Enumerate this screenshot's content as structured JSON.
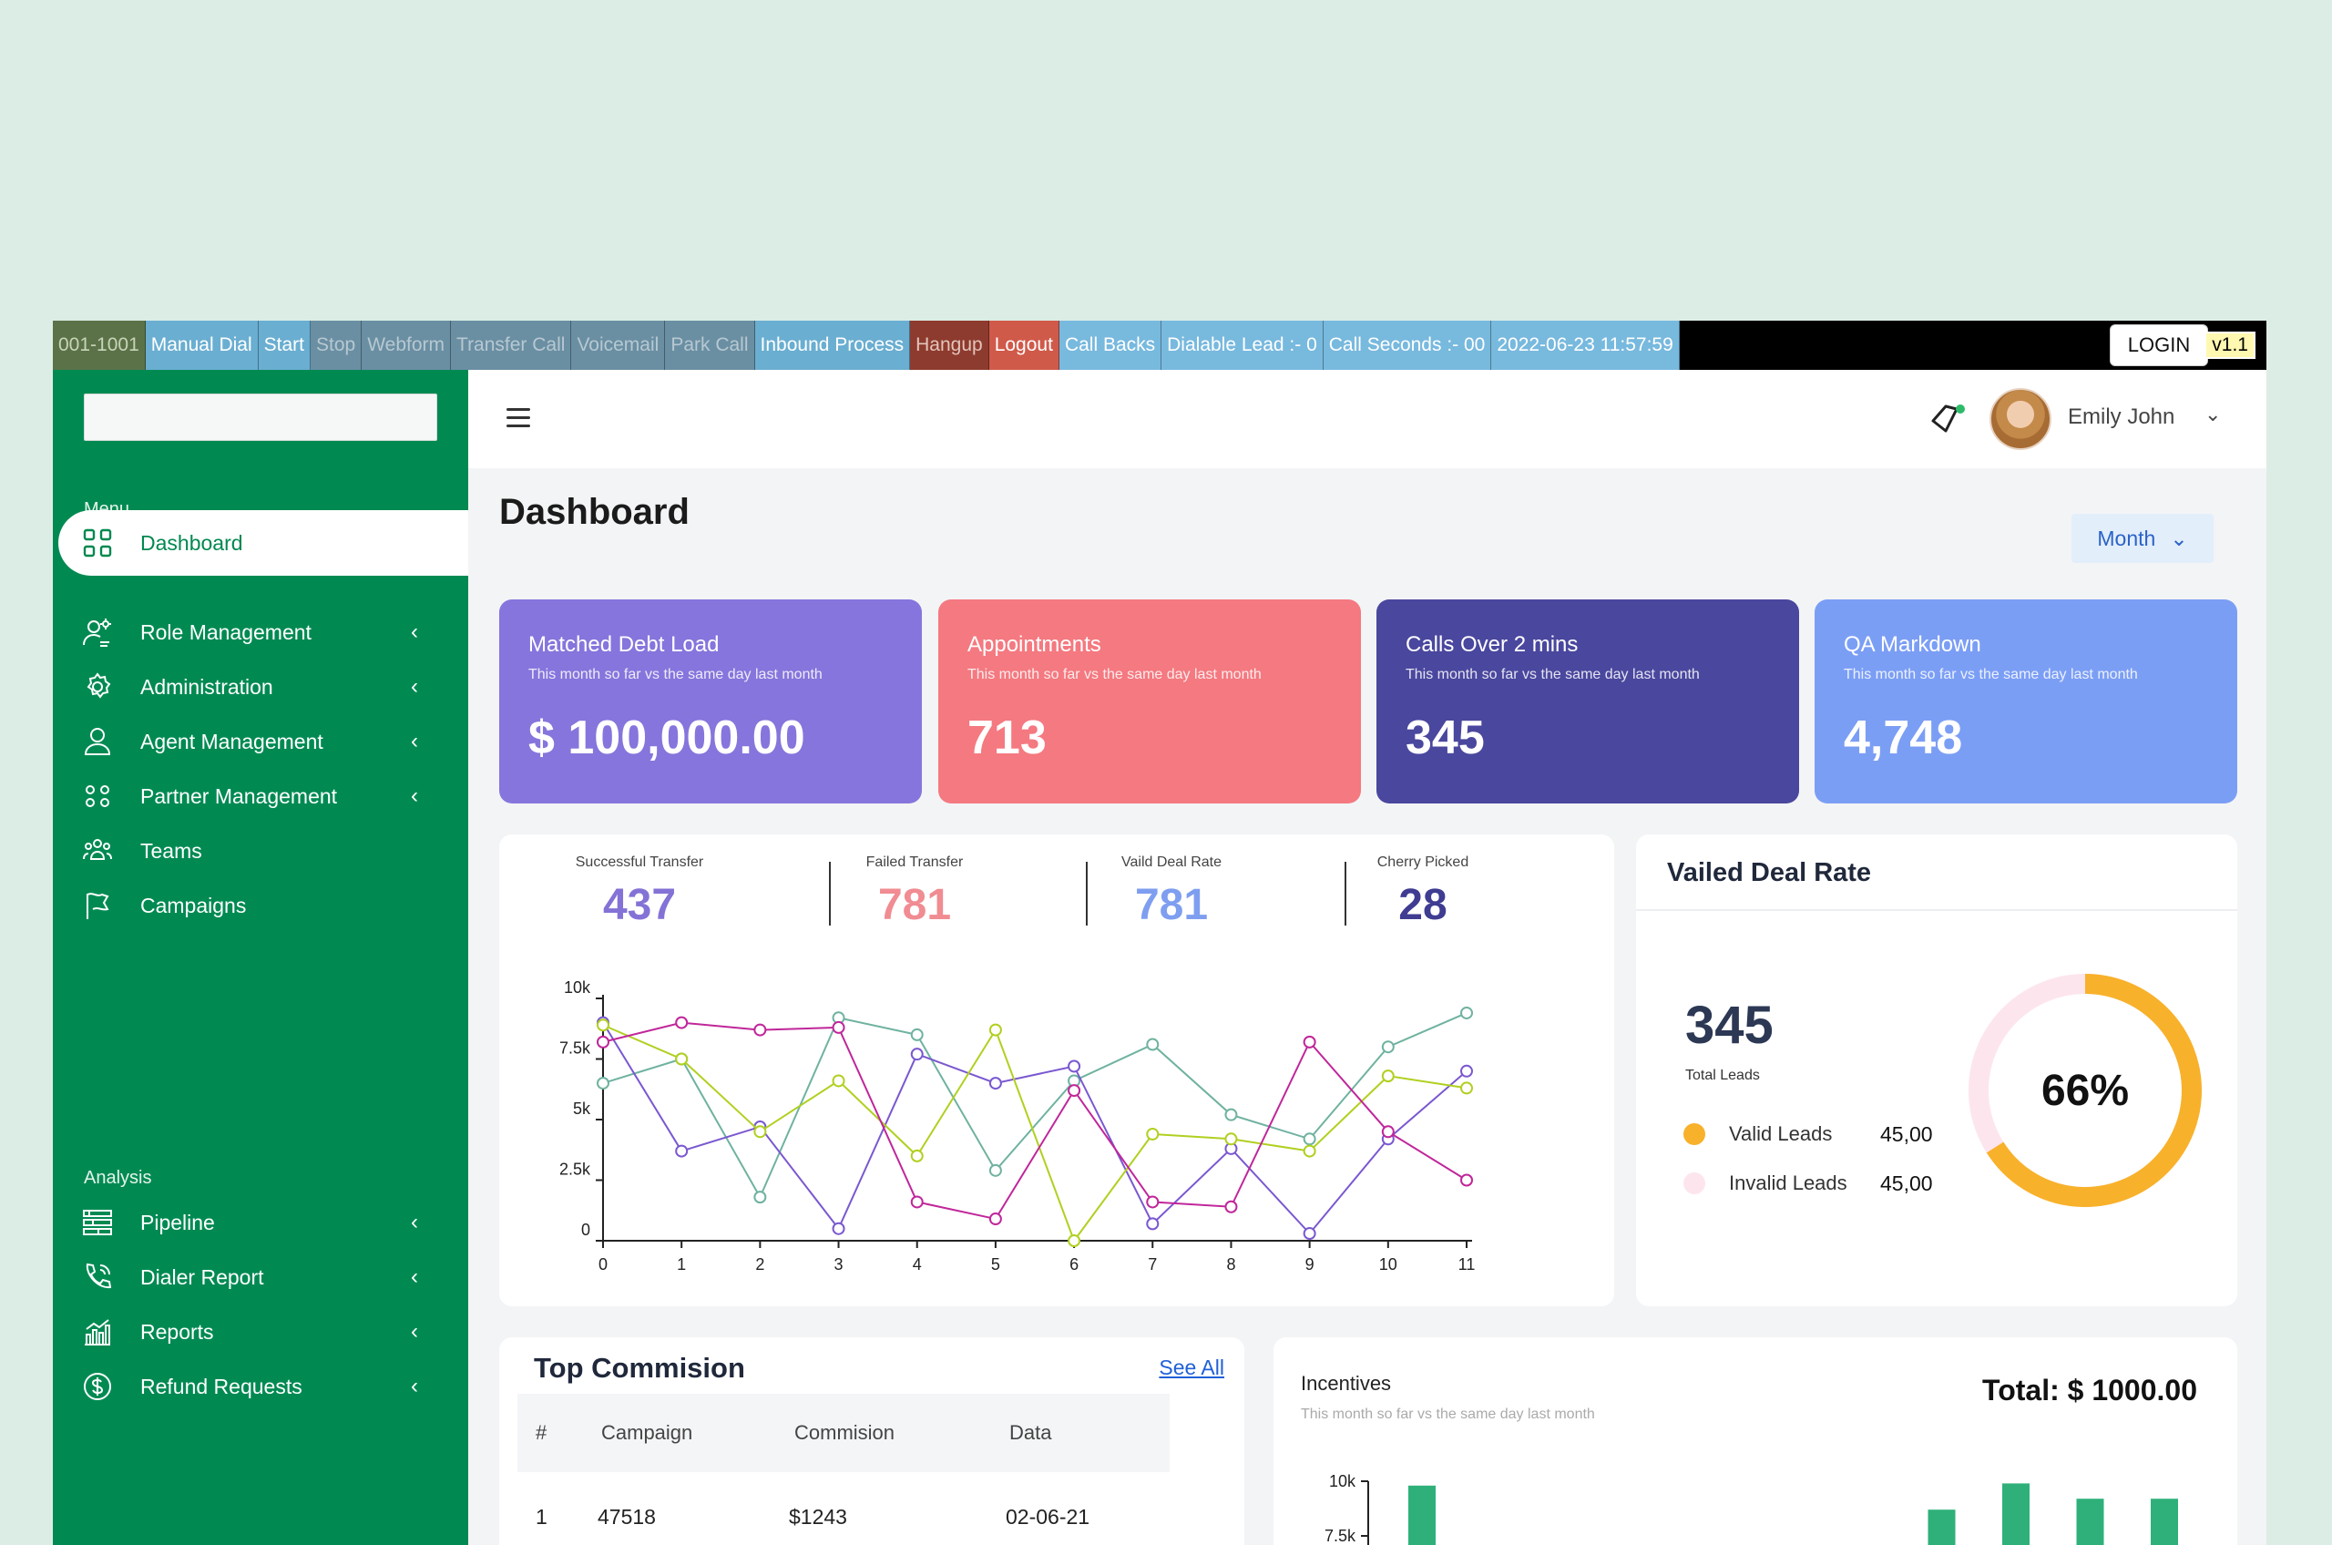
{
  "toolbar": {
    "ext": "001-1001",
    "manual_dial": "Manual Dial",
    "start": "Start",
    "stop": "Stop",
    "webform": "Webform",
    "transfer_call": "Transfer Call",
    "voicemail": "Voicemail",
    "park_call": "Park Call",
    "inbound_process": "Inbound Process",
    "hangup": "Hangup",
    "logout": "Logout",
    "call_backs": "Call Backs",
    "dialable_lead": "Dialable Lead :- 0",
    "call_seconds": "Call Seconds :- 00",
    "datetime": "2022-06-23 11:57:59",
    "login": "LOGIN",
    "version": "v1.1"
  },
  "sidebar": {
    "section_menu": "Menu",
    "section_analysis": "Analysis",
    "items": [
      {
        "label": "Dashboard",
        "icon": "grid-icon"
      },
      {
        "label": "Role Management",
        "icon": "user-gear-icon"
      },
      {
        "label": "Administration",
        "icon": "gear-icon"
      },
      {
        "label": "Agent Management",
        "icon": "user-icon"
      },
      {
        "label": "Partner Management",
        "icon": "users-icon"
      },
      {
        "label": "Teams",
        "icon": "team-icon"
      },
      {
        "label": "Campaigns",
        "icon": "flag-icon"
      },
      {
        "label": "Pipeline",
        "icon": "pipeline-icon"
      },
      {
        "label": "Dialer Report",
        "icon": "phone-icon"
      },
      {
        "label": "Reports",
        "icon": "bar-chart-icon"
      },
      {
        "label": "Refund Requests",
        "icon": "dollar-icon"
      }
    ]
  },
  "header": {
    "user_name": "Emily John"
  },
  "main": {
    "title": "Dashboard",
    "period": "Month",
    "kpis": [
      {
        "title": "Matched Debt Load",
        "subtitle": "This month so far vs the same day last month",
        "value": "$ 100,000.00",
        "color": "#8675dc"
      },
      {
        "title": "Appointments",
        "subtitle": "This month so far vs the same day last month",
        "value": "713",
        "color": "#f47980"
      },
      {
        "title": "Calls Over 2 mins",
        "subtitle": "This month so far vs the same day last month",
        "value": "345",
        "color": "#4a479e"
      },
      {
        "title": "QA Markdown",
        "subtitle": "This month so far vs the same day last month",
        "value": "4,748",
        "color": "#7b9ef5"
      }
    ],
    "stats": [
      {
        "label": "Successful Transfer",
        "value": "437",
        "color": "#8472d6"
      },
      {
        "label": "Failed Transfer",
        "value": "781",
        "color": "#f08c92"
      },
      {
        "label": "Vaild Deal Rate",
        "value": "781",
        "color": "#7e9ef0"
      },
      {
        "label": "Cherry Picked",
        "value": "28",
        "color": "#3f3c92"
      }
    ],
    "rate": {
      "title": "Vailed Deal Rate",
      "total": "345",
      "total_label": "Total Leads",
      "valid_label": "Valid Leads",
      "valid_value": "45,00",
      "invalid_label": "Invalid Leads",
      "invalid_value": "45,00",
      "percent": "66%",
      "percent_value": 0.66,
      "valid_color": "#f8b12a",
      "invalid_color": "#fde5ee"
    },
    "commission": {
      "title": "Top Commision",
      "see_all": "See All",
      "columns": [
        "#",
        "Campaign",
        "Commision",
        "Data"
      ],
      "rows": [
        [
          "1",
          "47518",
          "$1243",
          "02-06-21"
        ]
      ]
    },
    "incentives": {
      "title": "Incentives",
      "subtitle": "This month so far vs the same day last month",
      "total": "Total: $ 1000.00"
    }
  },
  "chart_data": [
    {
      "type": "line",
      "x": [
        0,
        1,
        2,
        3,
        4,
        5,
        6,
        7,
        8,
        9,
        10,
        11
      ],
      "ylim": [
        0,
        10000
      ],
      "yticks": [
        "0",
        "2.5k",
        "5k",
        "7.5k",
        "10k"
      ],
      "series": [
        {
          "color": "#6fb2a0",
          "values": [
            6500,
            7500,
            1800,
            9200,
            8500,
            2900,
            6600,
            8100,
            5200,
            4200,
            8000,
            9400
          ]
        },
        {
          "color": "#7a58d0",
          "values": [
            9000,
            3700,
            4700,
            500,
            7700,
            6500,
            7200,
            700,
            3800,
            300,
            4200,
            7000
          ]
        },
        {
          "color": "#b0d020",
          "values": [
            8900,
            7500,
            4500,
            6600,
            3500,
            8700,
            0,
            4400,
            4200,
            3700,
            6800,
            6300
          ]
        },
        {
          "color": "#c0269a",
          "values": [
            8200,
            9000,
            8700,
            8800,
            1600,
            900,
            6200,
            1600,
            1400,
            8200,
            4500,
            2500
          ]
        }
      ]
    },
    {
      "type": "bar",
      "yticks": [
        "7.5k",
        "10k"
      ],
      "color": "#2fb07a",
      "values": [
        9800,
        0,
        0,
        0,
        0,
        0,
        0,
        8700,
        9900,
        9200,
        9200
      ]
    }
  ]
}
